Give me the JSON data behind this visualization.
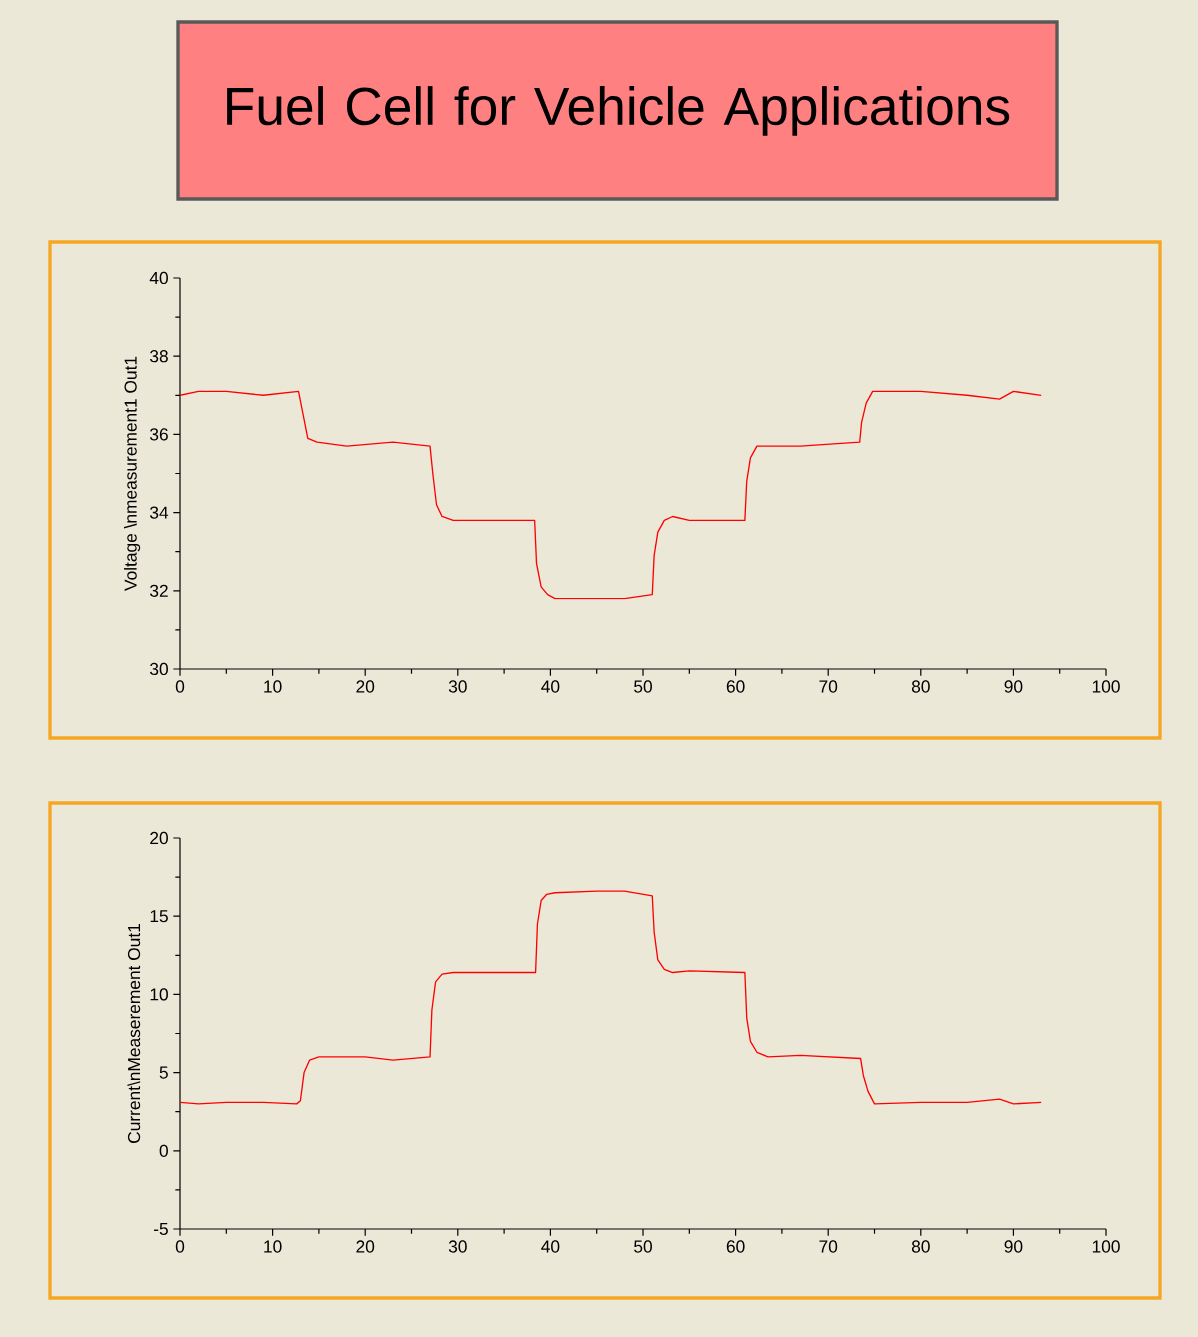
{
  "chart_data": [
    {
      "type": "other",
      "title": "Fuel Cell for Vehicle Applications"
    },
    {
      "type": "line",
      "ylabel": "Voltage \\nmeasurement1 Out1",
      "series": [
        {
          "color": "#ff0000",
          "x": [
            0,
            2,
            5,
            9,
            12.8,
            13.3,
            13.8,
            14.8,
            18,
            23,
            27,
            27.3,
            27.7,
            28.3,
            29.5,
            34,
            38.3,
            38.5,
            39,
            39.7,
            40.5,
            44,
            48,
            51,
            51.2,
            51.6,
            52.3,
            53.2,
            55,
            61,
            61.2,
            61.6,
            62.3,
            63.3,
            67,
            73.4,
            73.6,
            74.1,
            74.8,
            80,
            85,
            88.5,
            90,
            93
          ],
          "values": [
            37,
            37.1,
            37.1,
            37,
            37.1,
            36.5,
            35.9,
            35.8,
            35.7,
            35.8,
            35.7,
            35.0,
            34.2,
            33.9,
            33.8,
            33.8,
            33.8,
            32.7,
            32.1,
            31.9,
            31.8,
            31.8,
            31.8,
            31.9,
            32.9,
            33.5,
            33.8,
            33.9,
            33.8,
            33.8,
            34.8,
            35.4,
            35.7,
            35.7,
            35.7,
            35.8,
            36.3,
            36.8,
            37.1,
            37.1,
            37.0,
            36.9,
            37.1,
            37.0
          ]
        }
      ],
      "xlim": [
        0,
        100
      ],
      "xticks": [
        0,
        10,
        20,
        30,
        40,
        50,
        60,
        70,
        80,
        90,
        100
      ],
      "ylim": [
        30,
        40
      ],
      "yticks": [
        30,
        32,
        34,
        36,
        38,
        40
      ],
      "marker": "none",
      "line_style": "solid"
    },
    {
      "type": "line",
      "ylabel": "Current\\nMeaserement Out1",
      "series": [
        {
          "color": "#ff0000",
          "x": [
            0,
            2,
            5,
            9,
            12.6,
            13,
            13.4,
            14,
            15,
            20,
            23,
            27,
            27.2,
            27.6,
            28.3,
            29.5,
            34,
            38.4,
            38.6,
            39,
            39.6,
            40.5,
            45,
            48,
            51,
            51.2,
            51.6,
            52.3,
            53.2,
            55,
            61,
            61.2,
            61.6,
            62.3,
            63.5,
            67,
            73.5,
            73.8,
            74.3,
            75,
            80,
            85,
            88.5,
            90,
            93
          ],
          "values": [
            3.1,
            3.0,
            3.1,
            3.1,
            3.0,
            3.2,
            5.0,
            5.8,
            6.0,
            6.0,
            5.8,
            6.0,
            9.0,
            10.8,
            11.3,
            11.4,
            11.4,
            11.4,
            14.5,
            16.0,
            16.4,
            16.5,
            16.6,
            16.6,
            16.3,
            14.0,
            12.2,
            11.6,
            11.4,
            11.5,
            11.4,
            8.5,
            7.0,
            6.3,
            6.0,
            6.1,
            5.9,
            4.8,
            3.8,
            3.0,
            3.1,
            3.1,
            3.3,
            3.0,
            3.1
          ]
        }
      ],
      "xlim": [
        0,
        100
      ],
      "xticks": [
        0,
        10,
        20,
        30,
        40,
        50,
        60,
        70,
        80,
        90,
        100
      ],
      "ylim": [
        -5,
        20
      ],
      "yticks": [
        -5,
        0,
        5,
        10,
        15,
        20
      ],
      "marker": "none",
      "line_style": "solid"
    }
  ]
}
